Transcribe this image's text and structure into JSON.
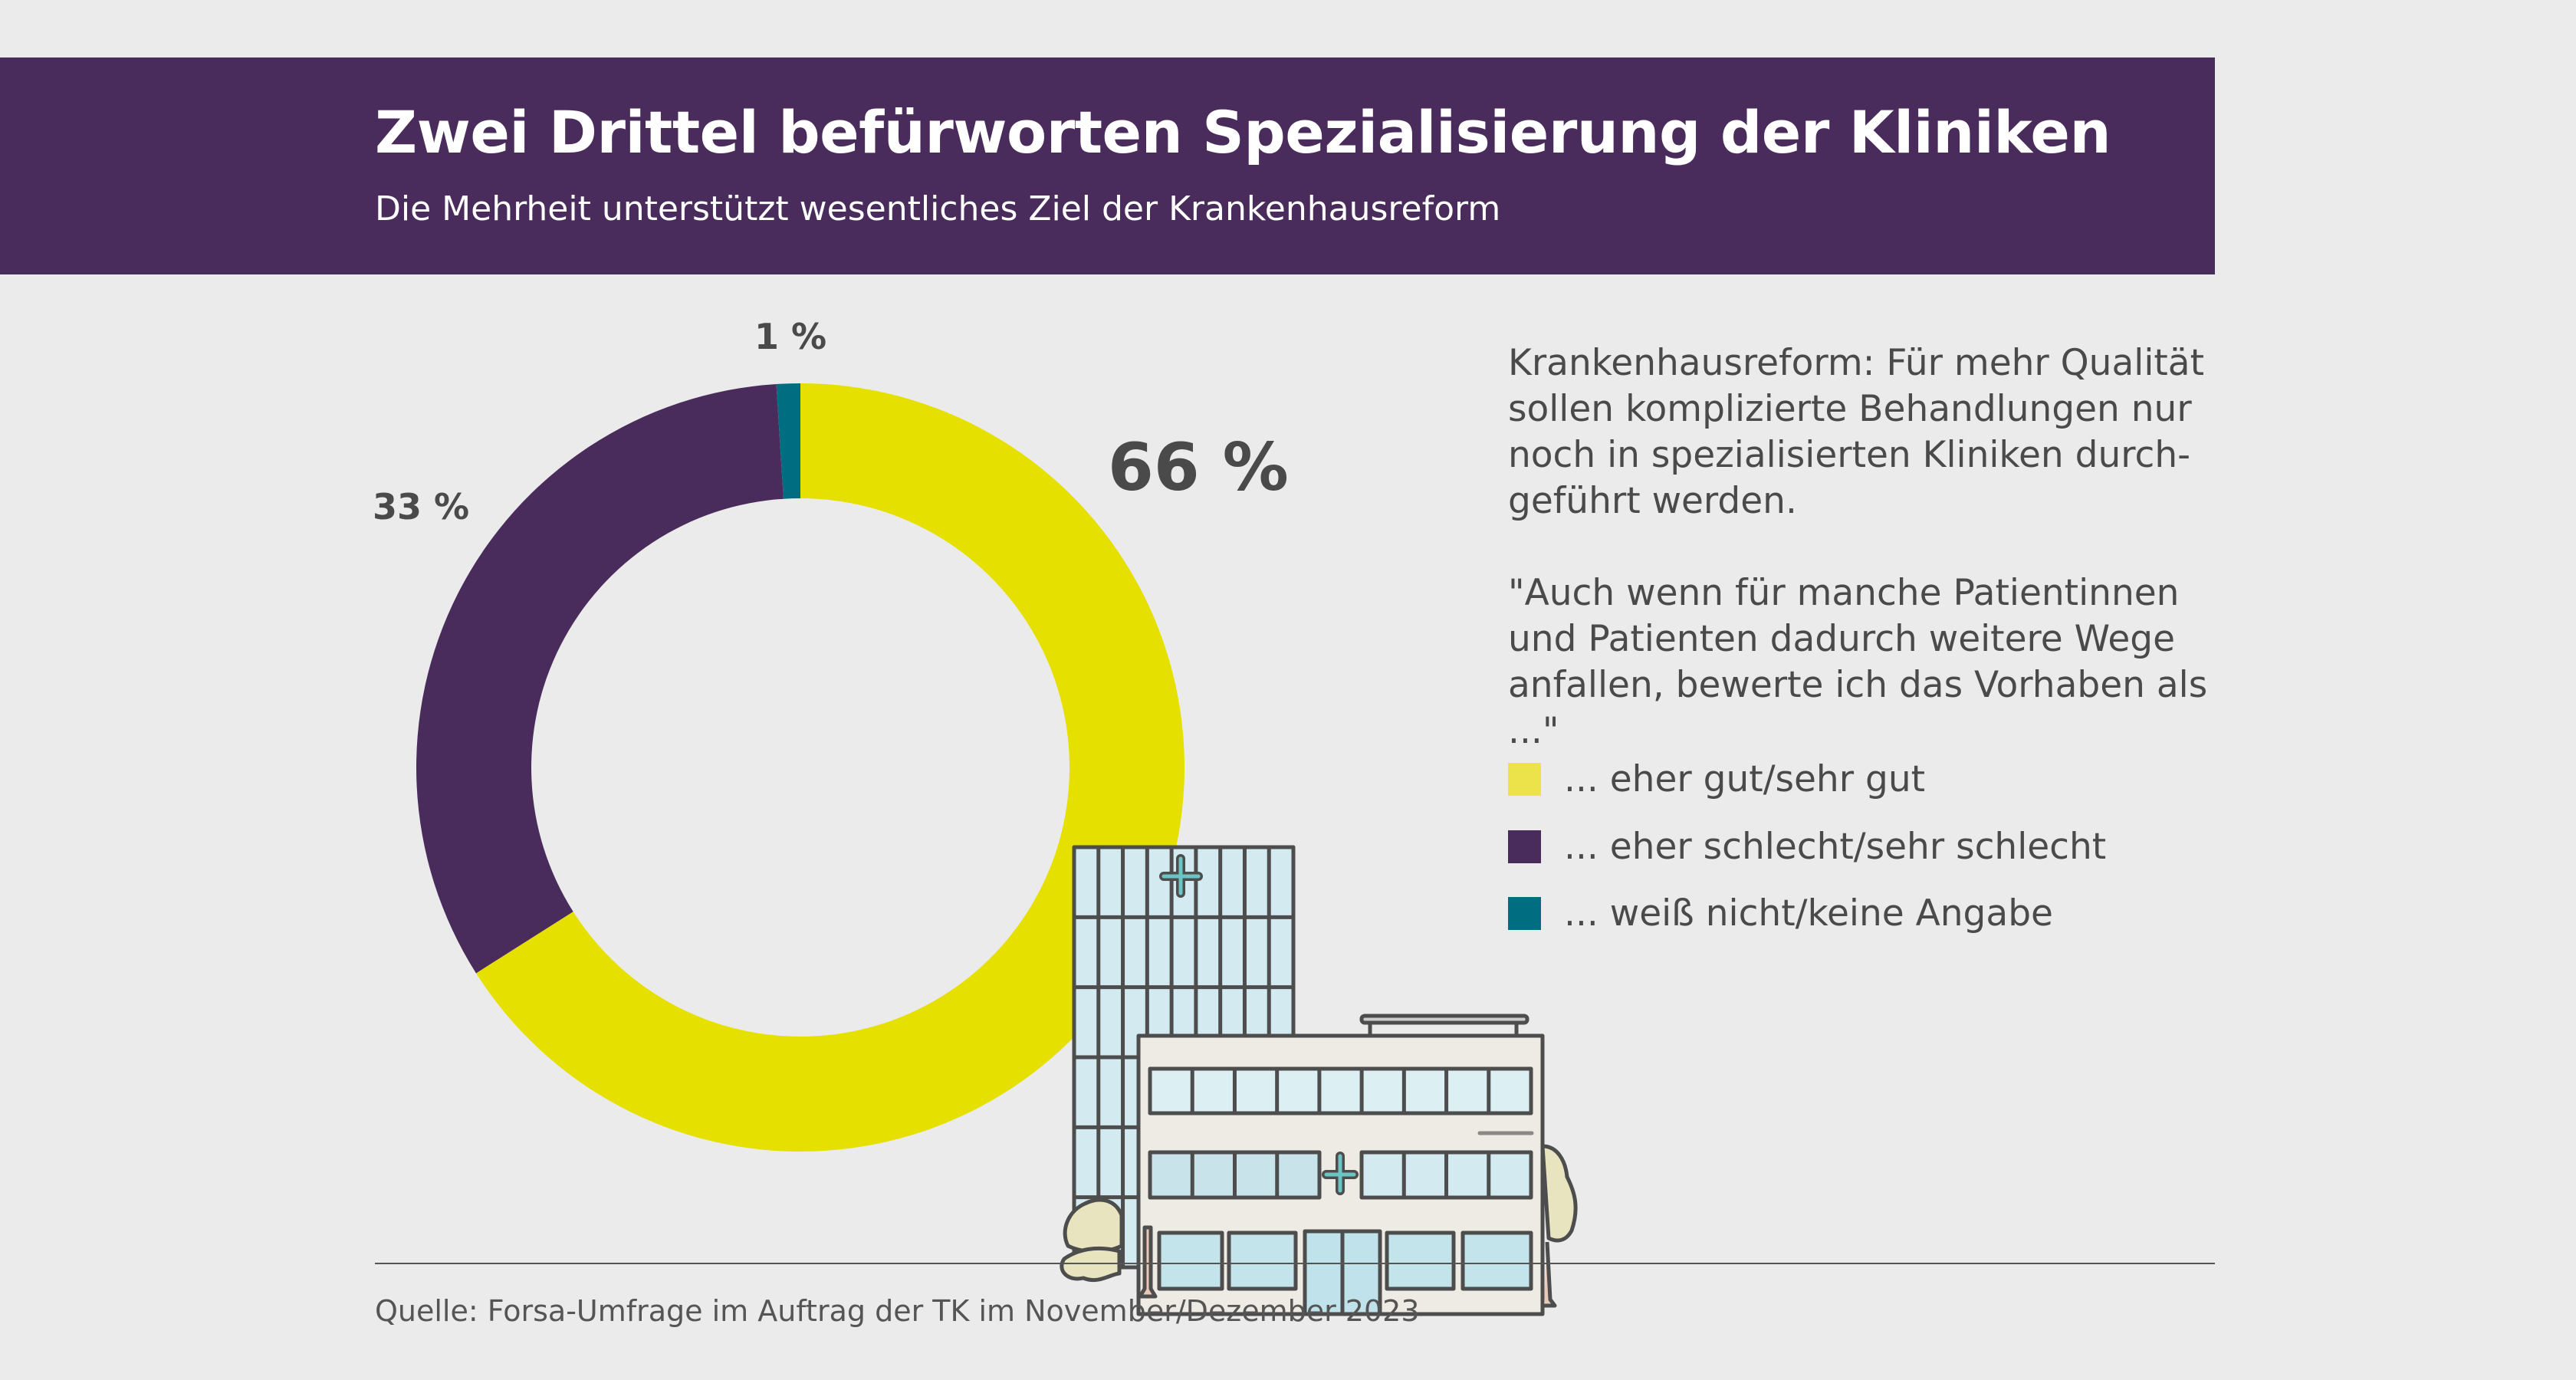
{
  "header": {
    "title": "Zwei Drittel befürworten Spezialisierung der Kliniken",
    "subtitle": "Die Mehrheit unterstützt wesentliches Ziel der Krankenhausreform"
  },
  "description": {
    "lines1": [
      "Krankenhausreform: Für mehr Qualität",
      "sollen komplizierte Behandlungen nur",
      "noch in spezialisierten Kliniken durch-",
      "geführt werden."
    ],
    "lines2": [
      "\"Auch wenn für manche Patientinnen",
      "und Patienten dadurch weitere Wege",
      "anfallen, bewerte ich das Vorhaben als ...\""
    ]
  },
  "chart_data": {
    "type": "pie",
    "variant": "donut",
    "title": "Zwei Drittel befürworten Spezialisierung der Kliniken",
    "categories": [
      "... eher gut/sehr gut",
      "... eher schlecht/sehr schlecht",
      "... weiß nicht/keine Angabe"
    ],
    "values": [
      66,
      33,
      1
    ],
    "labels": [
      "66 %",
      "33 %",
      "1 %"
    ],
    "colors": [
      "#e6e000",
      "#4a2c5c",
      "#006e80"
    ],
    "unit": "%",
    "legend": "right"
  },
  "footer": {
    "source": "Quelle: Forsa-Umfrage im Auftrag der TK im November/Dezember 2023"
  },
  "icons": {
    "illustration": "hospital-building-icon"
  }
}
